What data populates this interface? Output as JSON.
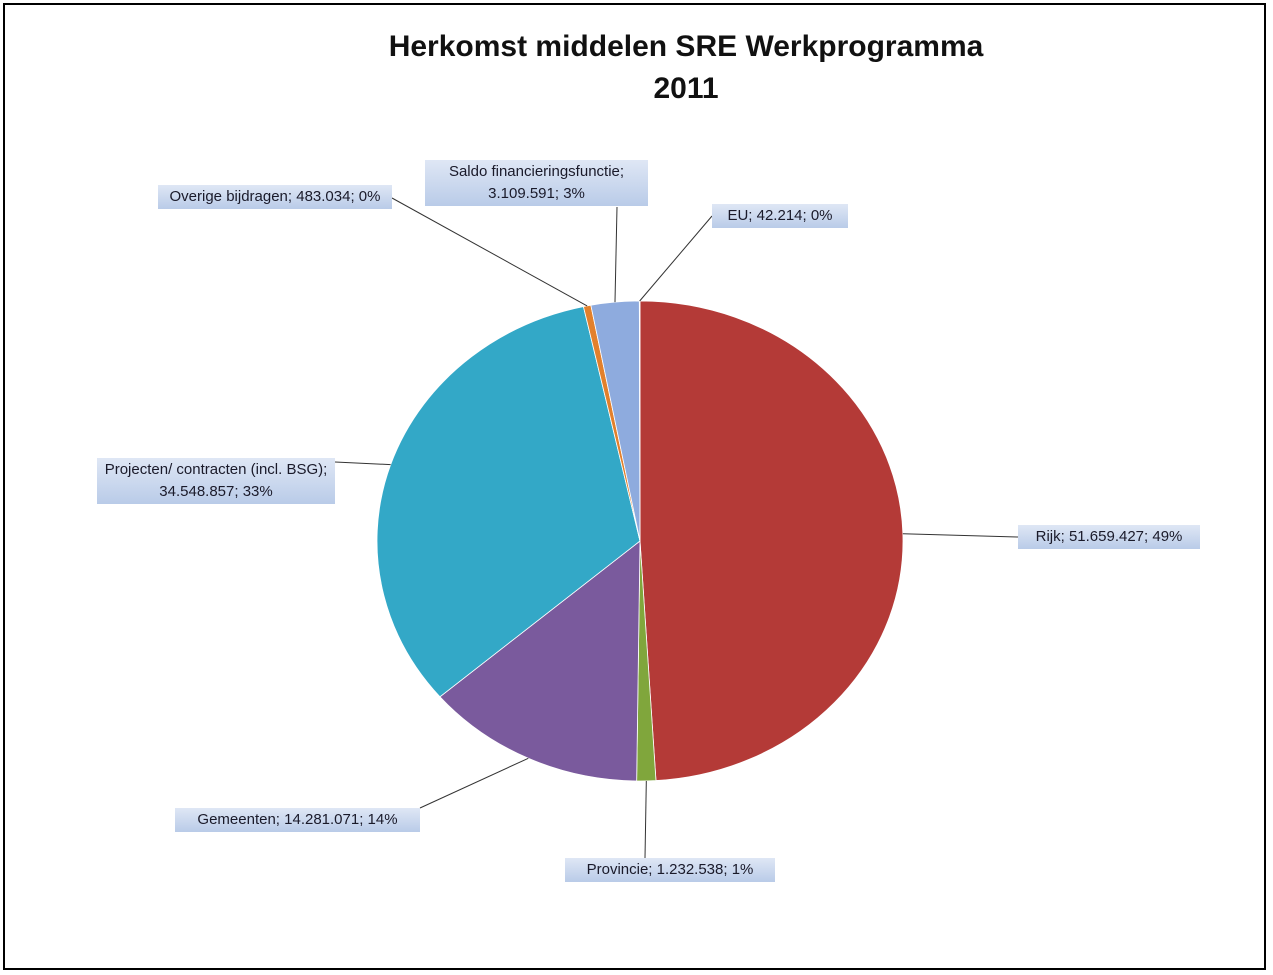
{
  "chart_data": {
    "type": "pie",
    "title": "Herkomst middelen SRE Werkprogramma 2011",
    "categories": [
      "Rijk",
      "Provincie",
      "Gemeenten",
      "Projecten/ contracten (incl. BSG)",
      "Overige bijdragen",
      "Saldo financieringsfunctie",
      "EU"
    ],
    "values": [
      51659427,
      1232538,
      14281071,
      34548857,
      483034,
      3109591,
      42214
    ],
    "value_labels": [
      "Rijk; 51.659.427; 49%",
      "Provincie; 1.232.538; 1%",
      "Gemeenten; 14.281.071; 14%",
      "Projecten/ contracten (incl. BSG); 34.548.857; 33%",
      "Overige bijdragen; 483.034; 0%",
      "Saldo financieringsfunctie; 3.109.591; 3%",
      "EU; 42.214; 0%"
    ],
    "colors": [
      "#b43a37",
      "#80a63c",
      "#7a5a9d",
      "#33a8c7",
      "#e2802c",
      "#8eabde",
      "#4f7fc0"
    ]
  }
}
